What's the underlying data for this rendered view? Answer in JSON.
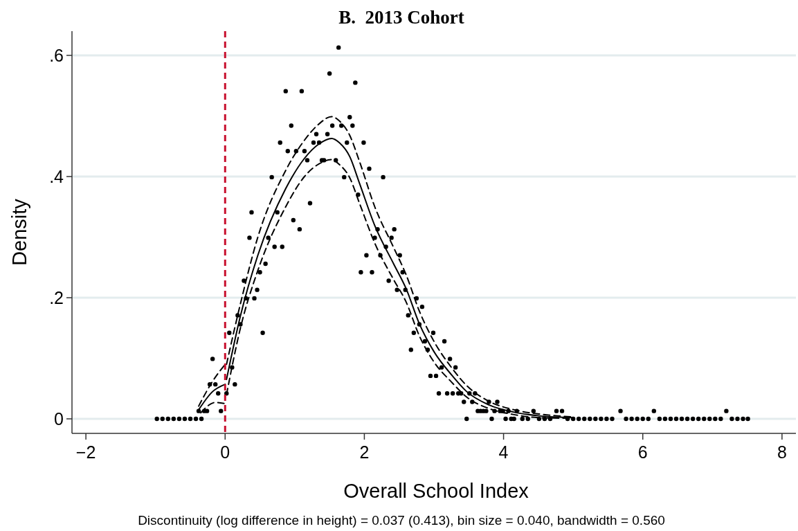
{
  "chart_data": {
    "type": "scatter",
    "title": "B.  2013 Cohort",
    "xlabel": "Overall School Index",
    "ylabel": "Density",
    "annotations": [
      "Discontinuity (log difference in height) = 0.037 (0.413), bin size = 0.040, bandwidth = 0.560"
    ],
    "xlim": [
      -2.2,
      8.2
    ],
    "ylim": [
      -0.024,
      0.64
    ],
    "xticks": [
      {
        "value": -2,
        "label": "−2"
      },
      0,
      2,
      4,
      6,
      8
    ],
    "yticks": [
      0,
      {
        "value": 0.2,
        "label": ".2"
      },
      {
        "value": 0.4,
        "label": ".4"
      },
      {
        "value": 0.6,
        "label": ".6"
      }
    ],
    "grid": "y",
    "ref_lines": [
      {
        "axis": "x",
        "value": 0,
        "color": "#c8102e",
        "line_style": "dashed"
      }
    ],
    "series": [
      {
        "color": "#000000",
        "marker": "circle",
        "x": [
          -0.98,
          -0.9,
          -0.82,
          -0.74,
          -0.66,
          -0.58,
          -0.5,
          -0.42,
          -0.38,
          -0.34,
          -0.3,
          -0.26,
          -0.22,
          -0.18,
          -0.14,
          -0.1,
          -0.06,
          0.02,
          0.06,
          0.1,
          0.14,
          0.18,
          0.22,
          0.27,
          0.3,
          0.35,
          0.38,
          0.42,
          0.46,
          0.5,
          0.54,
          0.58,
          0.62,
          0.67,
          0.71,
          0.75,
          0.79,
          0.82,
          0.87,
          0.9,
          0.95,
          0.98,
          1.02,
          1.07,
          1.1,
          1.14,
          1.18,
          1.22,
          1.27,
          1.31,
          1.35,
          1.39,
          1.42,
          1.47,
          1.5,
          1.54,
          1.59,
          1.63,
          1.67,
          1.71,
          1.75,
          1.79,
          1.83,
          1.87,
          1.91,
          1.95,
          1.99,
          2.03,
          2.07,
          2.11,
          2.15,
          2.19,
          2.23,
          2.27,
          2.31,
          2.35,
          2.39,
          2.43,
          2.47,
          2.51,
          2.55,
          2.59,
          2.63,
          2.67,
          2.71,
          2.75,
          2.79,
          2.83,
          2.87,
          2.91,
          2.95,
          2.99,
          3.03,
          3.07,
          3.11,
          3.15,
          3.19,
          3.23,
          3.27,
          3.31,
          3.35,
          3.39,
          3.43,
          3.47,
          3.51,
          3.55,
          3.59,
          3.63,
          3.67,
          3.71,
          3.75,
          3.79,
          3.83,
          3.87,
          3.91,
          3.95,
          3.99,
          4.03,
          4.07,
          4.11,
          4.15,
          4.19,
          4.27,
          4.35,
          4.43,
          4.51,
          4.59,
          4.67,
          4.76,
          4.84,
          4.92,
          5.0,
          5.08,
          5.16,
          5.24,
          5.32,
          5.4,
          5.48,
          5.56,
          5.68,
          5.76,
          5.84,
          5.92,
          6.0,
          6.08,
          6.16,
          6.24,
          6.32,
          6.4,
          6.48,
          6.56,
          6.64,
          6.72,
          6.8,
          6.88,
          6.96,
          7.04,
          7.12,
          7.2,
          7.28,
          7.36,
          7.44,
          7.51
        ],
        "values": [
          0,
          0,
          0,
          0,
          0,
          0,
          0,
          0,
          0.013,
          0,
          0.013,
          0.013,
          0.057,
          0.099,
          0.057,
          0.042,
          0.013,
          0.042,
          0.142,
          0.085,
          0.057,
          0.171,
          0.156,
          0.228,
          0.199,
          0.299,
          0.341,
          0.199,
          0.213,
          0.242,
          0.142,
          0.256,
          0.299,
          0.399,
          0.284,
          0.341,
          0.456,
          0.284,
          0.541,
          0.442,
          0.484,
          0.328,
          0.442,
          0.313,
          0.541,
          0.442,
          0.427,
          0.356,
          0.456,
          0.47,
          0.456,
          0.427,
          0.427,
          0.47,
          0.57,
          0.484,
          0.427,
          0.613,
          0.484,
          0.399,
          0.456,
          0.498,
          0.484,
          0.555,
          0.37,
          0.242,
          0.456,
          0.27,
          0.413,
          0.242,
          0.299,
          0.313,
          0.27,
          0.399,
          0.284,
          0.228,
          0.299,
          0.313,
          0.213,
          0.27,
          0.242,
          0.213,
          0.171,
          0.114,
          0.142,
          0.199,
          0.156,
          0.185,
          0.128,
          0.114,
          0.071,
          0.142,
          0.071,
          0.042,
          0.085,
          0.128,
          0.042,
          0.099,
          0.042,
          0.085,
          0.042,
          0.042,
          0.028,
          0,
          0.042,
          0.028,
          0.042,
          0.013,
          0.013,
          0.013,
          0.013,
          0.028,
          0,
          0.013,
          0.028,
          0.013,
          0.013,
          0,
          0.013,
          0,
          0,
          0.013,
          0,
          0,
          0.013,
          0,
          0,
          0,
          0.013,
          0.013,
          0,
          0,
          0,
          0,
          0,
          0,
          0,
          0,
          0,
          0.013,
          0,
          0,
          0,
          0,
          0,
          0.013,
          0,
          0,
          0,
          0,
          0,
          0,
          0,
          0,
          0,
          0,
          0,
          0,
          0.013,
          0,
          0,
          0,
          0
        ]
      },
      {
        "type": "line",
        "color": "#000000",
        "line_style": "solid",
        "x": [
          -0.38,
          -0.18,
          0
        ],
        "values": [
          0.015,
          0.045,
          0.057
        ]
      },
      {
        "type": "line",
        "color": "#000000",
        "line_style": "dashed",
        "x": [
          -0.38,
          -0.18,
          0
        ],
        "values": [
          0.021,
          0.062,
          0.09
        ]
      },
      {
        "type": "line",
        "color": "#000000",
        "line_style": "dashed",
        "x": [
          -0.35,
          -0.14,
          0
        ],
        "values": [
          0.01,
          0.027,
          0.025
        ]
      },
      {
        "type": "line",
        "color": "#000000",
        "line_style": "solid",
        "x": [
          0.02,
          0.22,
          0.47,
          0.87,
          1.14,
          1.35,
          1.53,
          1.64,
          1.79,
          1.93,
          2.15,
          2.42,
          2.6,
          2.79,
          3.0,
          3.25,
          3.47,
          3.79,
          4.15,
          4.51,
          5.0
        ],
        "values": [
          0.065,
          0.17,
          0.27,
          0.38,
          0.43,
          0.454,
          0.463,
          0.456,
          0.433,
          0.389,
          0.319,
          0.256,
          0.215,
          0.157,
          0.111,
          0.073,
          0.045,
          0.023,
          0.011,
          0.005,
          0.002
        ]
      },
      {
        "type": "line",
        "color": "#000000",
        "line_style": "dashed",
        "x": [
          0.02,
          0.22,
          0.47,
          0.87,
          1.14,
          1.35,
          1.53,
          1.64,
          1.79,
          1.93,
          2.15,
          2.42,
          2.6,
          2.79,
          3.0,
          3.25,
          3.47,
          3.79,
          4.15,
          4.51,
          5.0
        ],
        "values": [
          0.09,
          0.19,
          0.3,
          0.41,
          0.46,
          0.487,
          0.499,
          0.492,
          0.468,
          0.425,
          0.35,
          0.283,
          0.238,
          0.178,
          0.128,
          0.085,
          0.055,
          0.029,
          0.015,
          0.008,
          0.003
        ]
      },
      {
        "type": "line",
        "color": "#000000",
        "line_style": "dashed",
        "x": [
          0.02,
          0.22,
          0.47,
          0.87,
          1.14,
          1.35,
          1.53,
          1.64,
          1.79,
          1.93,
          2.15,
          2.42,
          2.6,
          2.79,
          3.0,
          3.25,
          3.47,
          3.79,
          4.15,
          4.51,
          5.0
        ],
        "values": [
          0.04,
          0.15,
          0.245,
          0.35,
          0.4,
          0.421,
          0.428,
          0.42,
          0.398,
          0.356,
          0.29,
          0.23,
          0.193,
          0.137,
          0.094,
          0.061,
          0.036,
          0.017,
          0.007,
          0.002,
          0.001
        ]
      }
    ]
  }
}
